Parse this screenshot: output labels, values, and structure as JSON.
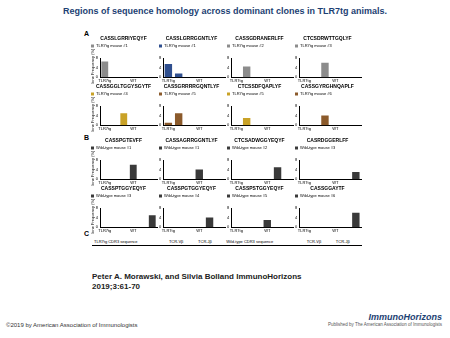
{
  "header": {
    "title": "Regions of sequence homology across dominant clones in TLR7tg animals."
  },
  "panel_labels": [
    "A",
    "B",
    "C"
  ],
  "chart_data": [
    {
      "type": "bar",
      "panel": "A",
      "title": "CASSLGRRIYEQYF",
      "categories": [
        "TLR7tg",
        null,
        null,
        "WT",
        null,
        null
      ],
      "series": [
        {
          "name": "TLR7tg mouse #1",
          "color": "#8c8c8c",
          "values": [
            6.5,
            0,
            0,
            0,
            0,
            0
          ]
        }
      ],
      "ylim": [
        0,
        8
      ],
      "yticks": [
        0,
        4,
        8
      ],
      "y_label": "Clone Frequency (%)",
      "legend": "top",
      "grid": false
    },
    {
      "type": "bar",
      "panel": "A",
      "title": "CASSLGRRGGNTLYF",
      "categories": [
        "TLR7tg",
        null,
        null,
        "WT",
        null,
        null
      ],
      "series": [
        {
          "name": "TLR7tg mouse #1",
          "color": "#2f4f8f",
          "values": [
            5.5,
            1.5,
            0,
            0,
            0,
            0
          ]
        }
      ],
      "ylim": [
        0,
        8
      ],
      "yticks": [
        0,
        4,
        8
      ],
      "legend": "top",
      "grid": false
    },
    {
      "type": "bar",
      "panel": "A",
      "title": "CASSGDRANERLFF",
      "categories": [
        "TLR7tg",
        null,
        null,
        "WT",
        null,
        null
      ],
      "series": [
        {
          "name": "TLR7tg mouse #2",
          "color": "#8c8c8c",
          "values": [
            0,
            4.5,
            0,
            0,
            0,
            0
          ]
        }
      ],
      "ylim": [
        0,
        8
      ],
      "yticks": [
        0,
        4,
        8
      ],
      "legend": "top",
      "grid": false
    },
    {
      "type": "bar",
      "panel": "A",
      "title": "CTCSDRWTTGQLYF",
      "categories": [
        "TLR7tg",
        null,
        null,
        "WT",
        null,
        null
      ],
      "series": [
        {
          "name": "TLR7tg mouse #3",
          "color": "#8c8c8c",
          "values": [
            0,
            0,
            6,
            0,
            0,
            0
          ]
        }
      ],
      "ylim": [
        0,
        8
      ],
      "yticks": [
        0,
        4,
        8
      ],
      "legend": "top",
      "grid": false
    },
    {
      "type": "bar",
      "panel": "A",
      "title": "CASSGGLTGGYSGYTF",
      "categories": [
        "TLR7tg",
        null,
        null,
        "WT",
        null,
        null
      ],
      "series": [
        {
          "name": "TLR7tg mouse #4",
          "color": "#c9a227",
          "values": [
            0,
            0,
            5,
            0,
            0,
            0
          ]
        }
      ],
      "ylim": [
        0,
        8
      ],
      "yticks": [
        0,
        4,
        8
      ],
      "y_label": "Clone Frequency (%)",
      "legend": "top",
      "grid": false
    },
    {
      "type": "bar",
      "panel": "A",
      "title": "CASSGRRRRGQNTLYF",
      "categories": [
        "TLR7tg",
        null,
        null,
        "WT",
        null,
        null
      ],
      "series": [
        {
          "name": "TLR7tg mouse #5",
          "color": "#8b5a2b",
          "values": [
            1,
            5,
            0,
            0,
            0,
            0
          ]
        }
      ],
      "ylim": [
        0,
        8
      ],
      "yticks": [
        0,
        4,
        8
      ],
      "legend": "top",
      "grid": false
    },
    {
      "type": "bar",
      "panel": "A",
      "title": "CTCSSDFQAPLYF",
      "categories": [
        "TLR7tg",
        null,
        null,
        "WT",
        null,
        null
      ],
      "series": [
        {
          "name": "TLR7tg mouse #5",
          "color": "#c9a227",
          "values": [
            0,
            3,
            0,
            0,
            0,
            0
          ]
        }
      ],
      "ylim": [
        0,
        8
      ],
      "yticks": [
        0,
        4,
        8
      ],
      "legend": "top",
      "grid": false
    },
    {
      "type": "bar",
      "panel": "A",
      "title": "CASSGYRGHNQAPLF",
      "categories": [
        "TLR7tg",
        null,
        null,
        "WT",
        null,
        null
      ],
      "series": [
        {
          "name": "TLR7tg mouse #6",
          "color": "#8b5a2b",
          "values": [
            0,
            0,
            4,
            0,
            0,
            0
          ]
        }
      ],
      "ylim": [
        0,
        8
      ],
      "yticks": [
        0,
        4,
        8
      ],
      "legend": "top",
      "grid": false
    },
    {
      "type": "bar",
      "panel": "B",
      "title": "CASSPGTEVFF",
      "categories": [
        "TLR7tg",
        null,
        null,
        "WT",
        null,
        null
      ],
      "series": [
        {
          "name": "Wild-type mouse #1",
          "color": "#3a3a3a",
          "values": [
            0,
            0,
            0,
            6,
            0,
            0
          ]
        }
      ],
      "ylim": [
        0,
        8
      ],
      "yticks": [
        0,
        4,
        8
      ],
      "y_label": "Clone Frequency (%)",
      "legend": "top",
      "grid": false
    },
    {
      "type": "bar",
      "panel": "B",
      "title": "CASSAGRRGGNTLYF",
      "categories": [
        "TLR7tg",
        null,
        null,
        "WT",
        null,
        null
      ],
      "series": [
        {
          "name": "Wild-type mouse #1",
          "color": "#3a3a3a",
          "values": [
            0,
            0,
            0,
            4,
            0,
            0
          ]
        }
      ],
      "ylim": [
        0,
        8
      ],
      "yticks": [
        0,
        4,
        8
      ],
      "legend": "top",
      "grid": false
    },
    {
      "type": "bar",
      "panel": "B",
      "title": "CTCSADWGGYEQYF",
      "categories": [
        "TLR7tg",
        null,
        null,
        "WT",
        null,
        null
      ],
      "series": [
        {
          "name": "Wild-type mouse #2",
          "color": "#3a3a3a",
          "values": [
            0,
            0,
            0,
            0,
            5,
            0
          ]
        }
      ],
      "ylim": [
        0,
        8
      ],
      "yticks": [
        0,
        4,
        8
      ],
      "legend": "top",
      "grid": false
    },
    {
      "type": "bar",
      "panel": "B",
      "title": "CASRDGGERLFF",
      "categories": [
        "TLR7tg",
        null,
        null,
        "WT",
        null,
        null
      ],
      "series": [
        {
          "name": "Wild-type mouse #3",
          "color": "#3a3a3a",
          "values": [
            0,
            0,
            0,
            0,
            0,
            3
          ]
        }
      ],
      "ylim": [
        0,
        8
      ],
      "yticks": [
        0,
        4,
        8
      ],
      "legend": "top",
      "grid": false
    },
    {
      "type": "bar",
      "panel": "B",
      "title": "CASSPTGGYEQYF",
      "categories": [
        "TLR7tg",
        null,
        null,
        "WT",
        null,
        null
      ],
      "series": [
        {
          "name": "Wild-type mouse #3",
          "color": "#3a3a3a",
          "values": [
            0,
            0,
            0,
            0,
            0,
            5
          ]
        }
      ],
      "ylim": [
        0,
        8
      ],
      "yticks": [
        0,
        4,
        8
      ],
      "y_label": "Clone Frequency (%)",
      "legend": "top",
      "grid": false
    },
    {
      "type": "bar",
      "panel": "B",
      "title": "CASSPGTGGYEQYF",
      "categories": [
        "TLR7tg",
        null,
        null,
        "WT",
        null,
        null
      ],
      "series": [
        {
          "name": "Wild-type mouse #4",
          "color": "#3a3a3a",
          "values": [
            0,
            0,
            0,
            0,
            4,
            0
          ]
        }
      ],
      "ylim": [
        0,
        8
      ],
      "yticks": [
        0,
        4,
        8
      ],
      "legend": "top",
      "grid": false
    },
    {
      "type": "bar",
      "panel": "B",
      "title": "CASSPSTGGYEQYF",
      "categories": [
        "TLR7tg",
        null,
        null,
        "WT",
        null,
        null
      ],
      "series": [
        {
          "name": "Wild-type mouse #5",
          "color": "#3a3a3a",
          "values": [
            0,
            0,
            0,
            3,
            0,
            0
          ]
        }
      ],
      "ylim": [
        0,
        8
      ],
      "yticks": [
        0,
        4,
        8
      ],
      "legend": "top",
      "grid": false
    },
    {
      "type": "bar",
      "panel": "B",
      "title": "CASSGGAYTF",
      "categories": [
        "TLR7tg",
        null,
        null,
        "WT",
        null,
        null
      ],
      "series": [
        {
          "name": "Wild-type mouse #6",
          "color": "#3a3a3a",
          "values": [
            0,
            0,
            0,
            0,
            0,
            6
          ]
        }
      ],
      "ylim": [
        0,
        8
      ],
      "yticks": [
        0,
        4,
        8
      ],
      "legend": "top",
      "grid": false
    }
  ],
  "table": {
    "header": [
      "TLR7tg CDR3 sequence",
      "TCR-Vβ",
      "TCR-Jβ",
      "Wild-type CDR3 sequence",
      "TCR-Vβ",
      "TCR-Jβ"
    ]
  },
  "citation": [
    "Peter A. Morawski, and Silvia Bolland ImmunoHorizons",
    "2019;3:61-70"
  ],
  "footer": {
    "copyright": "©2019 by American Association of Immunologists",
    "logo": "ImmunoHorizons",
    "publisher": "Published by The American Association of Immunologists"
  }
}
